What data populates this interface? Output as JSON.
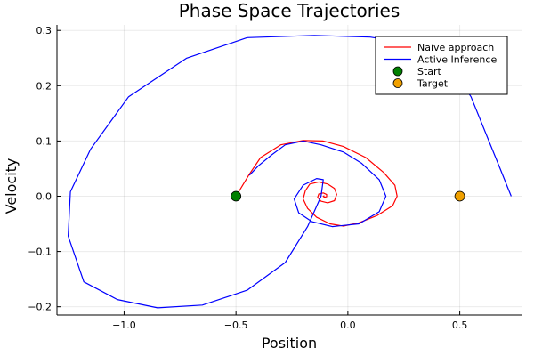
{
  "chart_data": {
    "type": "line",
    "title": "Phase Space Trajectories",
    "xlabel": "Position",
    "ylabel": "Velocity",
    "xlim": [
      -1.3,
      0.78
    ],
    "ylim": [
      -0.215,
      0.31
    ],
    "xticks": [
      -1.0,
      -0.5,
      0.0,
      0.5
    ],
    "xtick_labels": [
      "−1.0",
      "−0.5",
      "0.0",
      "0.5"
    ],
    "yticks": [
      -0.2,
      -0.1,
      0.0,
      0.1,
      0.2,
      0.3
    ],
    "ytick_labels": [
      "−0.2",
      "−0.1",
      "0.0",
      "0.1",
      "0.2",
      "0.3"
    ],
    "grid": true,
    "legend_position": "top-right",
    "series": [
      {
        "name": "Naive approach",
        "color": "#ff0000",
        "kind": "line",
        "points": [
          [
            -0.5,
            0.0
          ],
          [
            -0.47,
            0.02
          ],
          [
            -0.44,
            0.04
          ],
          [
            -0.39,
            0.07
          ],
          [
            -0.3,
            0.093
          ],
          [
            -0.2,
            0.101
          ],
          [
            -0.11,
            0.1
          ],
          [
            -0.02,
            0.09
          ],
          [
            0.08,
            0.07
          ],
          [
            0.16,
            0.043
          ],
          [
            0.21,
            0.02
          ],
          [
            0.22,
            0.0
          ],
          [
            0.2,
            -0.017
          ],
          [
            0.13,
            -0.035
          ],
          [
            0.05,
            -0.048
          ],
          [
            -0.02,
            -0.054
          ],
          [
            -0.08,
            -0.05
          ],
          [
            -0.14,
            -0.038
          ],
          [
            -0.18,
            -0.022
          ],
          [
            -0.2,
            -0.005
          ],
          [
            -0.19,
            0.01
          ],
          [
            -0.17,
            0.022
          ],
          [
            -0.13,
            0.026
          ],
          [
            -0.09,
            0.022
          ],
          [
            -0.06,
            0.014
          ],
          [
            -0.05,
            0.003
          ],
          [
            -0.06,
            -0.008
          ],
          [
            -0.09,
            -0.012
          ],
          [
            -0.12,
            -0.009
          ],
          [
            -0.135,
            -0.002
          ],
          [
            -0.13,
            0.004
          ],
          [
            -0.11,
            0.006
          ],
          [
            -0.095,
            0.003
          ],
          [
            -0.095,
            -0.001
          ],
          [
            -0.105,
            -0.002
          ],
          [
            -0.11,
            0.0
          ],
          [
            -0.105,
            0.001
          ]
        ]
      },
      {
        "name": "Active Inference",
        "color": "#0000ff",
        "kind": "line",
        "points": [
          [
            0.73,
            0.0
          ],
          [
            0.71,
            0.02
          ],
          [
            0.68,
            0.05
          ],
          [
            0.63,
            0.1
          ],
          [
            0.55,
            0.18
          ],
          [
            0.45,
            0.24
          ],
          [
            0.3,
            0.275
          ],
          [
            0.1,
            0.288
          ],
          [
            -0.15,
            0.291
          ],
          [
            -0.45,
            0.287
          ],
          [
            -0.72,
            0.25
          ],
          [
            -0.98,
            0.18
          ],
          [
            -1.15,
            0.085
          ],
          [
            -1.24,
            0.008
          ],
          [
            -1.25,
            -0.072
          ],
          [
            -1.18,
            -0.155
          ],
          [
            -1.03,
            -0.187
          ],
          [
            -0.85,
            -0.202
          ],
          [
            -0.65,
            -0.197
          ],
          [
            -0.45,
            -0.17
          ],
          [
            -0.28,
            -0.12
          ],
          [
            -0.18,
            -0.055
          ],
          [
            -0.12,
            0.0
          ],
          [
            -0.11,
            0.03
          ],
          [
            -0.14,
            0.032
          ],
          [
            -0.2,
            0.02
          ],
          [
            -0.24,
            -0.005
          ],
          [
            -0.22,
            -0.03
          ],
          [
            -0.16,
            -0.046
          ],
          [
            -0.07,
            -0.055
          ],
          [
            0.05,
            -0.05
          ],
          [
            0.14,
            -0.028
          ],
          [
            0.17,
            0.0
          ],
          [
            0.14,
            0.03
          ],
          [
            0.06,
            0.06
          ],
          [
            -0.02,
            0.08
          ],
          [
            -0.12,
            0.093
          ],
          [
            -0.2,
            0.1
          ],
          [
            -0.28,
            0.093
          ],
          [
            -0.34,
            0.075
          ],
          [
            -0.4,
            0.055
          ],
          [
            -0.44,
            0.038
          ]
        ]
      },
      {
        "name": "Start",
        "color": "#008000",
        "kind": "marker",
        "points": [
          [
            -0.5,
            0.0
          ]
        ]
      },
      {
        "name": "Target",
        "color": "#f0a000",
        "kind": "marker",
        "points": [
          [
            0.5,
            0.0
          ]
        ]
      }
    ]
  }
}
